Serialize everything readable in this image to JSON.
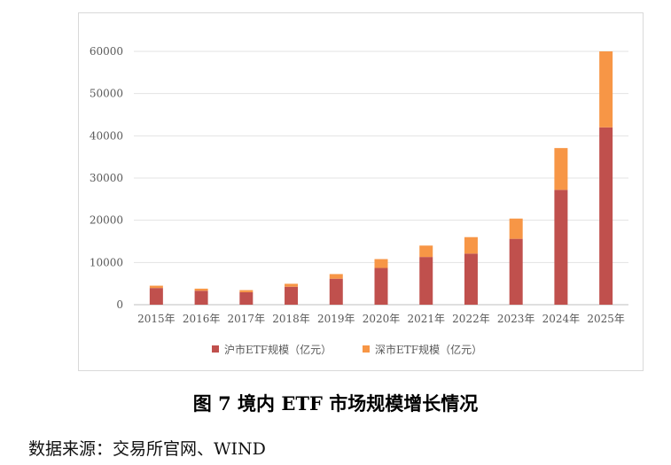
{
  "figure": {
    "title": "图 7  境内 ETF 市场规模增长情况",
    "source": "数据来源：交易所官网、WIND"
  },
  "chart_data": {
    "type": "bar",
    "stacked": true,
    "categories": [
      "2015年",
      "2016年",
      "2017年",
      "2018年",
      "2019年",
      "2020年",
      "2021年",
      "2022年",
      "2023年",
      "2024年",
      "2025年"
    ],
    "series": [
      {
        "name": "沪市ETF规模（亿元）",
        "color": "#c0504d",
        "values": [
          3950,
          3300,
          2950,
          4250,
          6150,
          8700,
          11300,
          12100,
          15600,
          27200,
          42000
        ]
      },
      {
        "name": "深市ETF规模（亿元）",
        "color": "#f79646",
        "values": [
          550,
          500,
          500,
          700,
          1100,
          2100,
          2700,
          3900,
          4800,
          9900,
          18000
        ]
      }
    ],
    "ylim": [
      0,
      60000
    ],
    "yticks": [
      0,
      10000,
      20000,
      30000,
      40000,
      50000,
      60000
    ],
    "grid": true,
    "legend_position": "bottom"
  }
}
